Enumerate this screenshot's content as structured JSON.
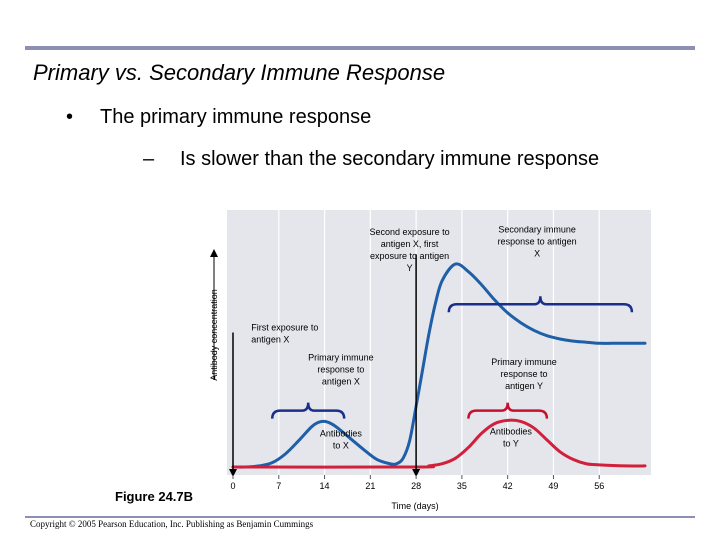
{
  "slide": {
    "title": "Primary vs. Secondary Immune Response",
    "bullet_level1": "The primary immune response",
    "bullet_level1_marker": "•",
    "bullet_level2": "Is slower than the secondary immune response",
    "bullet_level2_marker": "–",
    "figure_label": "Figure 24.7B",
    "copyright": "Copyright © 2005 Pearson Education, Inc. Publishing as Benjamin Cummings"
  },
  "colors": {
    "rule": "#8b8fb4",
    "plot_background": "#e4e6ec",
    "antibodies_x": "#1f5fa8",
    "antibodies_y": "#d0203c",
    "primary_x_bracket": "#1a2f8a",
    "secondary_x_bracket": "#1a2f8a",
    "primary_y_bracket": "#c8102e"
  },
  "chart_data": {
    "type": "line",
    "xlabel": "Time (days)",
    "ylabel": "Antibody concentration",
    "xticks": [
      0,
      7,
      14,
      21,
      28,
      35,
      42,
      49,
      56
    ],
    "xlim": [
      0,
      63
    ],
    "ylim": [
      0,
      1
    ],
    "grid": "vertical",
    "series": [
      {
        "name": "Antibodies to X",
        "color_key": "antibodies_x",
        "x": [
          0,
          2,
          4,
          6,
          8,
          10,
          12,
          13,
          14,
          15,
          16,
          18,
          20,
          22,
          24,
          25,
          26,
          27,
          28,
          29,
          30,
          31,
          32,
          34,
          36,
          38,
          40,
          42,
          44,
          46,
          48,
          50,
          52,
          54,
          56,
          58,
          60,
          63
        ],
        "y": [
          0,
          0,
          0.005,
          0.02,
          0.06,
          0.12,
          0.185,
          0.205,
          0.21,
          0.2,
          0.18,
          0.13,
          0.08,
          0.035,
          0.015,
          0.015,
          0.04,
          0.12,
          0.28,
          0.45,
          0.62,
          0.76,
          0.86,
          0.935,
          0.9,
          0.84,
          0.77,
          0.71,
          0.665,
          0.63,
          0.605,
          0.59,
          0.58,
          0.575,
          0.57,
          0.57,
          0.57,
          0.57
        ]
      },
      {
        "name": "Antibodies to Y",
        "color_key": "antibodies_y",
        "x": [
          0,
          28,
          30,
          32,
          34,
          36,
          38,
          40,
          42,
          44,
          46,
          48,
          50,
          52,
          54,
          56,
          60,
          63
        ],
        "y": [
          0,
          0,
          0.005,
          0.015,
          0.04,
          0.09,
          0.155,
          0.2,
          0.215,
          0.21,
          0.18,
          0.125,
          0.07,
          0.035,
          0.015,
          0.01,
          0.005,
          0.005
        ]
      }
    ],
    "annotations": {
      "first_exposure": "First exposure to antigen X",
      "second_exposure": "Second exposure to antigen X, first exposure to antigen Y",
      "primary_response_x": "Primary immune response to antigen X",
      "secondary_response_x": "Secondary immune response to antigen X",
      "primary_response_y": "Primary immune response to antigen Y",
      "antibodies_x_label": "Antibodies to X",
      "antibodies_y_label": "Antibodies to Y"
    },
    "exposure_days": [
      0,
      28
    ],
    "brackets": [
      {
        "name": "primary-x",
        "from": 6,
        "to": 17,
        "level": 0.26,
        "color_key": "primary_x_bracket"
      },
      {
        "name": "secondary-x",
        "from": 33,
        "to": 61,
        "level": 0.75,
        "color_key": "secondary_x_bracket"
      },
      {
        "name": "primary-y",
        "from": 36,
        "to": 48,
        "level": 0.26,
        "color_key": "primary_y_bracket"
      }
    ]
  }
}
